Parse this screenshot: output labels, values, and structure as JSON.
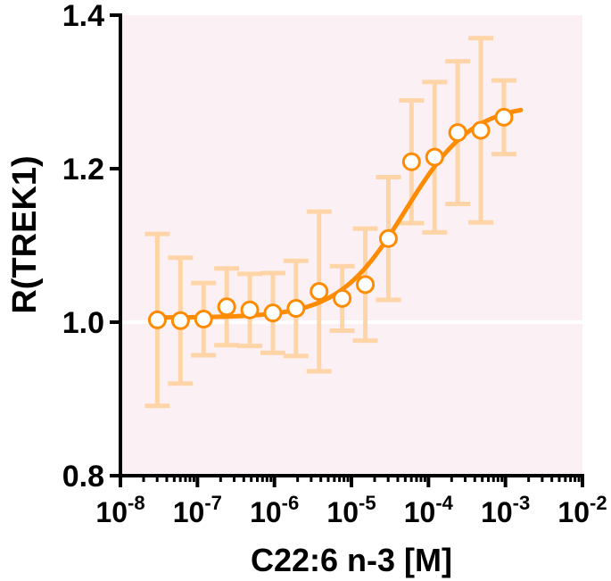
{
  "chart_data": {
    "type": "scatter",
    "title": "",
    "xlabel": "C22:6 n-3 [M]",
    "ylabel": "R(TREK1)",
    "xscale": "log10",
    "xlim_exp": [
      -8,
      -2
    ],
    "ylim": [
      0.8,
      1.4
    ],
    "x_ticks": [
      {
        "base": "10",
        "exp": "-8",
        "value": -8
      },
      {
        "base": "10",
        "exp": "-7",
        "value": -7
      },
      {
        "base": "10",
        "exp": "-6",
        "value": -6
      },
      {
        "base": "10",
        "exp": "-5",
        "value": -5
      },
      {
        "base": "10",
        "exp": "-4",
        "value": -4
      },
      {
        "base": "10",
        "exp": "-3",
        "value": -3
      },
      {
        "base": "10",
        "exp": "-2",
        "value": -2
      }
    ],
    "y_ticks": [
      {
        "label": "0.8",
        "value": 0.8
      },
      {
        "label": "1.0",
        "value": 1.0
      },
      {
        "label": "1.2",
        "value": 1.2
      },
      {
        "label": "1.4",
        "value": 1.4
      }
    ],
    "reference_line_y": 1.0,
    "series": [
      {
        "name": "C22:6 n-3",
        "color": "#FF8C00",
        "errorbar_color": "#FFD5A8",
        "marker_fill": "#ffffff",
        "points": [
          {
            "log_x": -7.52,
            "y": 1.003,
            "err": 0.112
          },
          {
            "log_x": -7.22,
            "y": 1.002,
            "err": 0.082
          },
          {
            "log_x": -6.92,
            "y": 1.004,
            "err": 0.047
          },
          {
            "log_x": -6.62,
            "y": 1.02,
            "err": 0.05
          },
          {
            "log_x": -6.32,
            "y": 1.016,
            "err": 0.047
          },
          {
            "log_x": -6.02,
            "y": 1.012,
            "err": 0.052
          },
          {
            "log_x": -5.72,
            "y": 1.018,
            "err": 0.062
          },
          {
            "log_x": -5.42,
            "y": 1.04,
            "err": 0.104
          },
          {
            "log_x": -5.12,
            "y": 1.031,
            "err": 0.042
          },
          {
            "log_x": -4.82,
            "y": 1.049,
            "err": 0.073
          },
          {
            "log_x": -4.52,
            "y": 1.109,
            "err": 0.08
          },
          {
            "log_x": -4.22,
            "y": 1.209,
            "err": 0.08
          },
          {
            "log_x": -3.92,
            "y": 1.215,
            "err": 0.098
          },
          {
            "log_x": -3.62,
            "y": 1.247,
            "err": 0.093
          },
          {
            "log_x": -3.32,
            "y": 1.25,
            "err": 0.12
          },
          {
            "log_x": -3.02,
            "y": 1.267,
            "err": 0.048
          }
        ],
        "fit": {
          "model": "sigmoid",
          "bottom": 1.006,
          "top": 1.285,
          "log_ec50": -4.3,
          "hill": 1.0,
          "x_range_exp": [
            -7.52,
            -2.8
          ]
        }
      }
    ],
    "colors": {
      "plot_background": "#FBF0F4",
      "axis": "#000000",
      "reference_line": "#ffffff"
    }
  }
}
